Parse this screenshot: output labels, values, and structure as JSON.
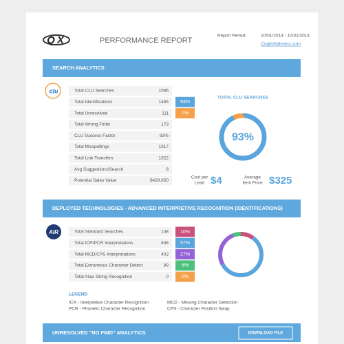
{
  "header": {
    "logo": "QX",
    "title": "PERFORMANCE REPORT",
    "period_label": "Report Period:",
    "period": "10/01/2014 - 10/31/2014",
    "link": "CogitoSalesInc.com"
  },
  "search_analytics": {
    "heading": "SEARCH ANALYTICS",
    "logo": "clu",
    "rows": [
      {
        "label": "Total CLU Searches",
        "value": "1596"
      },
      {
        "label": "Total Identifications",
        "value": "1485"
      },
      {
        "label": "Total Unresolved",
        "value": "111"
      },
      {
        "label": "Total Wrong Finds",
        "value": "173"
      },
      {
        "label": "CLU Success Factor",
        "value": "83%"
      },
      {
        "label": "Total Misspellings",
        "value": "1317"
      },
      {
        "label": "Total Link Transfers",
        "value": "1322"
      },
      {
        "label": "Avg Suggestions/Search",
        "value": "8"
      },
      {
        "label": "Potential Sales Value",
        "value": "$429,650"
      }
    ],
    "donut": {
      "title": "TOTAL CLU SEARCHES",
      "values": [
        93,
        7
      ],
      "value_labels": [
        "93%",
        "7%"
      ],
      "colors": [
        "#5aa5dc",
        "#f5a04a"
      ]
    },
    "cost_label": [
      "Cost per",
      "Lead"
    ],
    "cost": "$4",
    "price_label": [
      "Average",
      "Item Price"
    ],
    "price": "$325"
  },
  "deployed": {
    "heading": "DEPLOYED TECHNOLOGIES - ADVANCED INTERPRETIVE RECOGNITION (IDENTIFICATIONS)",
    "logo": "AIR",
    "rows": [
      {
        "label": "Total Standard Searches",
        "value": "148"
      },
      {
        "label": "Total ICR/PCR Interpretations",
        "value": "846"
      },
      {
        "label": "Total MCD/CPS Interpretations",
        "value": "402"
      },
      {
        "label": "Total Extraneous Character Detect",
        "value": "89"
      },
      {
        "label": "Total Alias String Recognition",
        "value": "0"
      }
    ],
    "donut": {
      "values": [
        10,
        57,
        27,
        6,
        0
      ],
      "value_labels": [
        "10%",
        "57%",
        "27%",
        "6%",
        "0%"
      ],
      "colors": [
        "#c9517c",
        "#5aa5dc",
        "#9463d8",
        "#4cc07c",
        "#f5a04a"
      ]
    },
    "legend": {
      "title": "LEGEND",
      "items": [
        "ICR - Interpretive Character Recognition",
        "MCD - Missing Character Detection",
        "PCR - Phonetic Character Recognition",
        "CPS - Character Position Swap"
      ]
    }
  },
  "unresolved": {
    "heading": "UNRESOLVED \"NO FIND\" ANALYTICS",
    "button": "DOWNLOAD FILE"
  }
}
